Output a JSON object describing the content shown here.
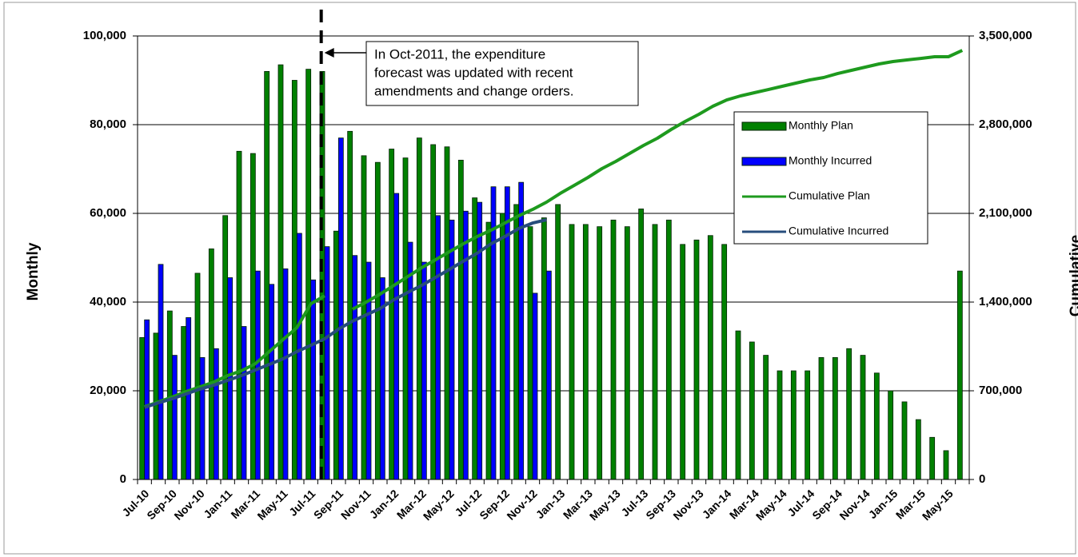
{
  "chart_data": {
    "type": "combo",
    "categories": [
      "Jul-10",
      null,
      "Sep-10",
      null,
      "Nov-10",
      null,
      "Jan-11",
      null,
      "Mar-11",
      null,
      "May-11",
      null,
      "Jul-11",
      null,
      "Sep-11",
      null,
      "Nov-11",
      null,
      "Jan-12",
      null,
      "Mar-12",
      null,
      "May-12",
      null,
      "Jul-12",
      null,
      "Sep-12",
      null,
      "Nov-12",
      null,
      "Jan-13",
      null,
      "Mar-13",
      null,
      "May-13",
      null,
      "Jul-13",
      null,
      "Sep-13",
      null,
      "Nov-13",
      null,
      "Jan-14",
      null,
      "Mar-14",
      null,
      "May-14",
      null,
      "Jul-14",
      null,
      "Sep-14",
      null,
      "Nov-14",
      null,
      "Jan-15",
      null,
      "Mar-15",
      null,
      "May-15",
      null
    ],
    "series": [
      {
        "name": "Monthly Plan",
        "type": "bar",
        "color": "#008000",
        "values": [
          32000,
          33000,
          38000,
          34500,
          46500,
          52000,
          59500,
          74000,
          73500,
          92000,
          93500,
          90000,
          92500,
          92000,
          56000,
          78500,
          73000,
          71500,
          74500,
          72500,
          77000,
          75500,
          75000,
          72000,
          63500,
          58000,
          60000,
          62000,
          57000,
          59000,
          62000,
          57500,
          57500,
          57000,
          58500,
          57000,
          61000,
          57500,
          58500,
          53000,
          54000,
          55000,
          53000,
          33500,
          31000,
          28000,
          24500,
          24500,
          24500,
          27500,
          27500,
          29500,
          28000,
          24000,
          20000,
          17500,
          13500,
          9500,
          6500,
          47000
        ]
      },
      {
        "name": "Monthly Incurred",
        "type": "bar",
        "color": "#0000ff",
        "values": [
          36000,
          48500,
          28000,
          36500,
          27500,
          29500,
          45500,
          34500,
          47000,
          44000,
          47500,
          55500,
          45000,
          52500,
          77000,
          50500,
          49000,
          45500,
          64500,
          53500,
          49000,
          59500,
          58500,
          60500,
          62500,
          66000,
          66000,
          67000,
          42000,
          47000,
          null,
          null,
          null,
          null,
          null,
          null,
          null,
          null,
          null,
          null,
          null,
          null,
          null,
          null,
          null,
          null,
          null,
          null,
          null,
          null,
          null,
          null,
          null,
          null,
          null,
          null,
          null,
          null,
          null,
          null
        ]
      },
      {
        "name": "Cumulative Plan",
        "type": "line",
        "axis": "y2",
        "color": "#1e9a1e",
        "values": [
          574000,
          612000,
          650000,
          694000,
          731000,
          769000,
          820000,
          858000,
          914000,
          1009000,
          1104000,
          1198000,
          1387000,
          1450000,
          null,
          1343000,
          1400000,
          1463000,
          1532000,
          1602000,
          1671000,
          1734000,
          1797000,
          1860000,
          1917000,
          1967000,
          2024000,
          2081000,
          2131000,
          2188000,
          2258000,
          2321000,
          2384000,
          2453000,
          2510000,
          2573000,
          2636000,
          2693000,
          2762000,
          2825000,
          2882000,
          2945000,
          2995000,
          3027000,
          3052000,
          3077000,
          3103000,
          3128000,
          3153000,
          3172000,
          3203000,
          3229000,
          3254000,
          3279000,
          3298000,
          3311000,
          3323000,
          3336000,
          3336000,
          3386000
        ]
      },
      {
        "name": "Cumulative Incurred",
        "type": "line",
        "axis": "y2",
        "color": "#274d7c",
        "values": [
          568000,
          605000,
          637000,
          675000,
          713000,
          744000,
          782000,
          820000,
          864000,
          908000,
          952000,
          1009000,
          1059000,
          1110000,
          1186000,
          1249000,
          1299000,
          1349000,
          1419000,
          1476000,
          1532000,
          1595000,
          1658000,
          1722000,
          1785000,
          1860000,
          1917000,
          1980000,
          2024000,
          2049000,
          null,
          null,
          null,
          null,
          null,
          null,
          null,
          null,
          null,
          null,
          null,
          null,
          null,
          null,
          null,
          null,
          null,
          null,
          null,
          null,
          null,
          null,
          null,
          null,
          null,
          null,
          null,
          null,
          null,
          null
        ]
      }
    ],
    "y_label": "Monthly",
    "y2_label": "Cumulative",
    "ylim": [
      0,
      100000
    ],
    "yticks": [
      0,
      {
        "value": 20000,
        "label": "20,000"
      },
      {
        "value": 40000,
        "label": "40,000"
      },
      {
        "value": 60000,
        "label": "60,000"
      },
      {
        "value": 80000,
        "label": "80,000"
      },
      {
        "value": 100000,
        "label": "100,000"
      }
    ],
    "y2lim": [
      0,
      3500000
    ],
    "y2ticks": [
      0,
      {
        "value": 700000,
        "label": "700,000"
      },
      {
        "value": 1400000,
        "label": "1,400,000"
      },
      {
        "value": 2100000,
        "label": "2,100,000"
      },
      {
        "value": 2800000,
        "label": "2,800,000"
      },
      {
        "value": 3500000,
        "label": "3,500,000"
      }
    ],
    "grid": true,
    "legend": "upper right",
    "annotation": [
      "In  Oct-2011, the expenditure",
      "forecast was updated with recent",
      "amendments  and change orders."
    ]
  }
}
